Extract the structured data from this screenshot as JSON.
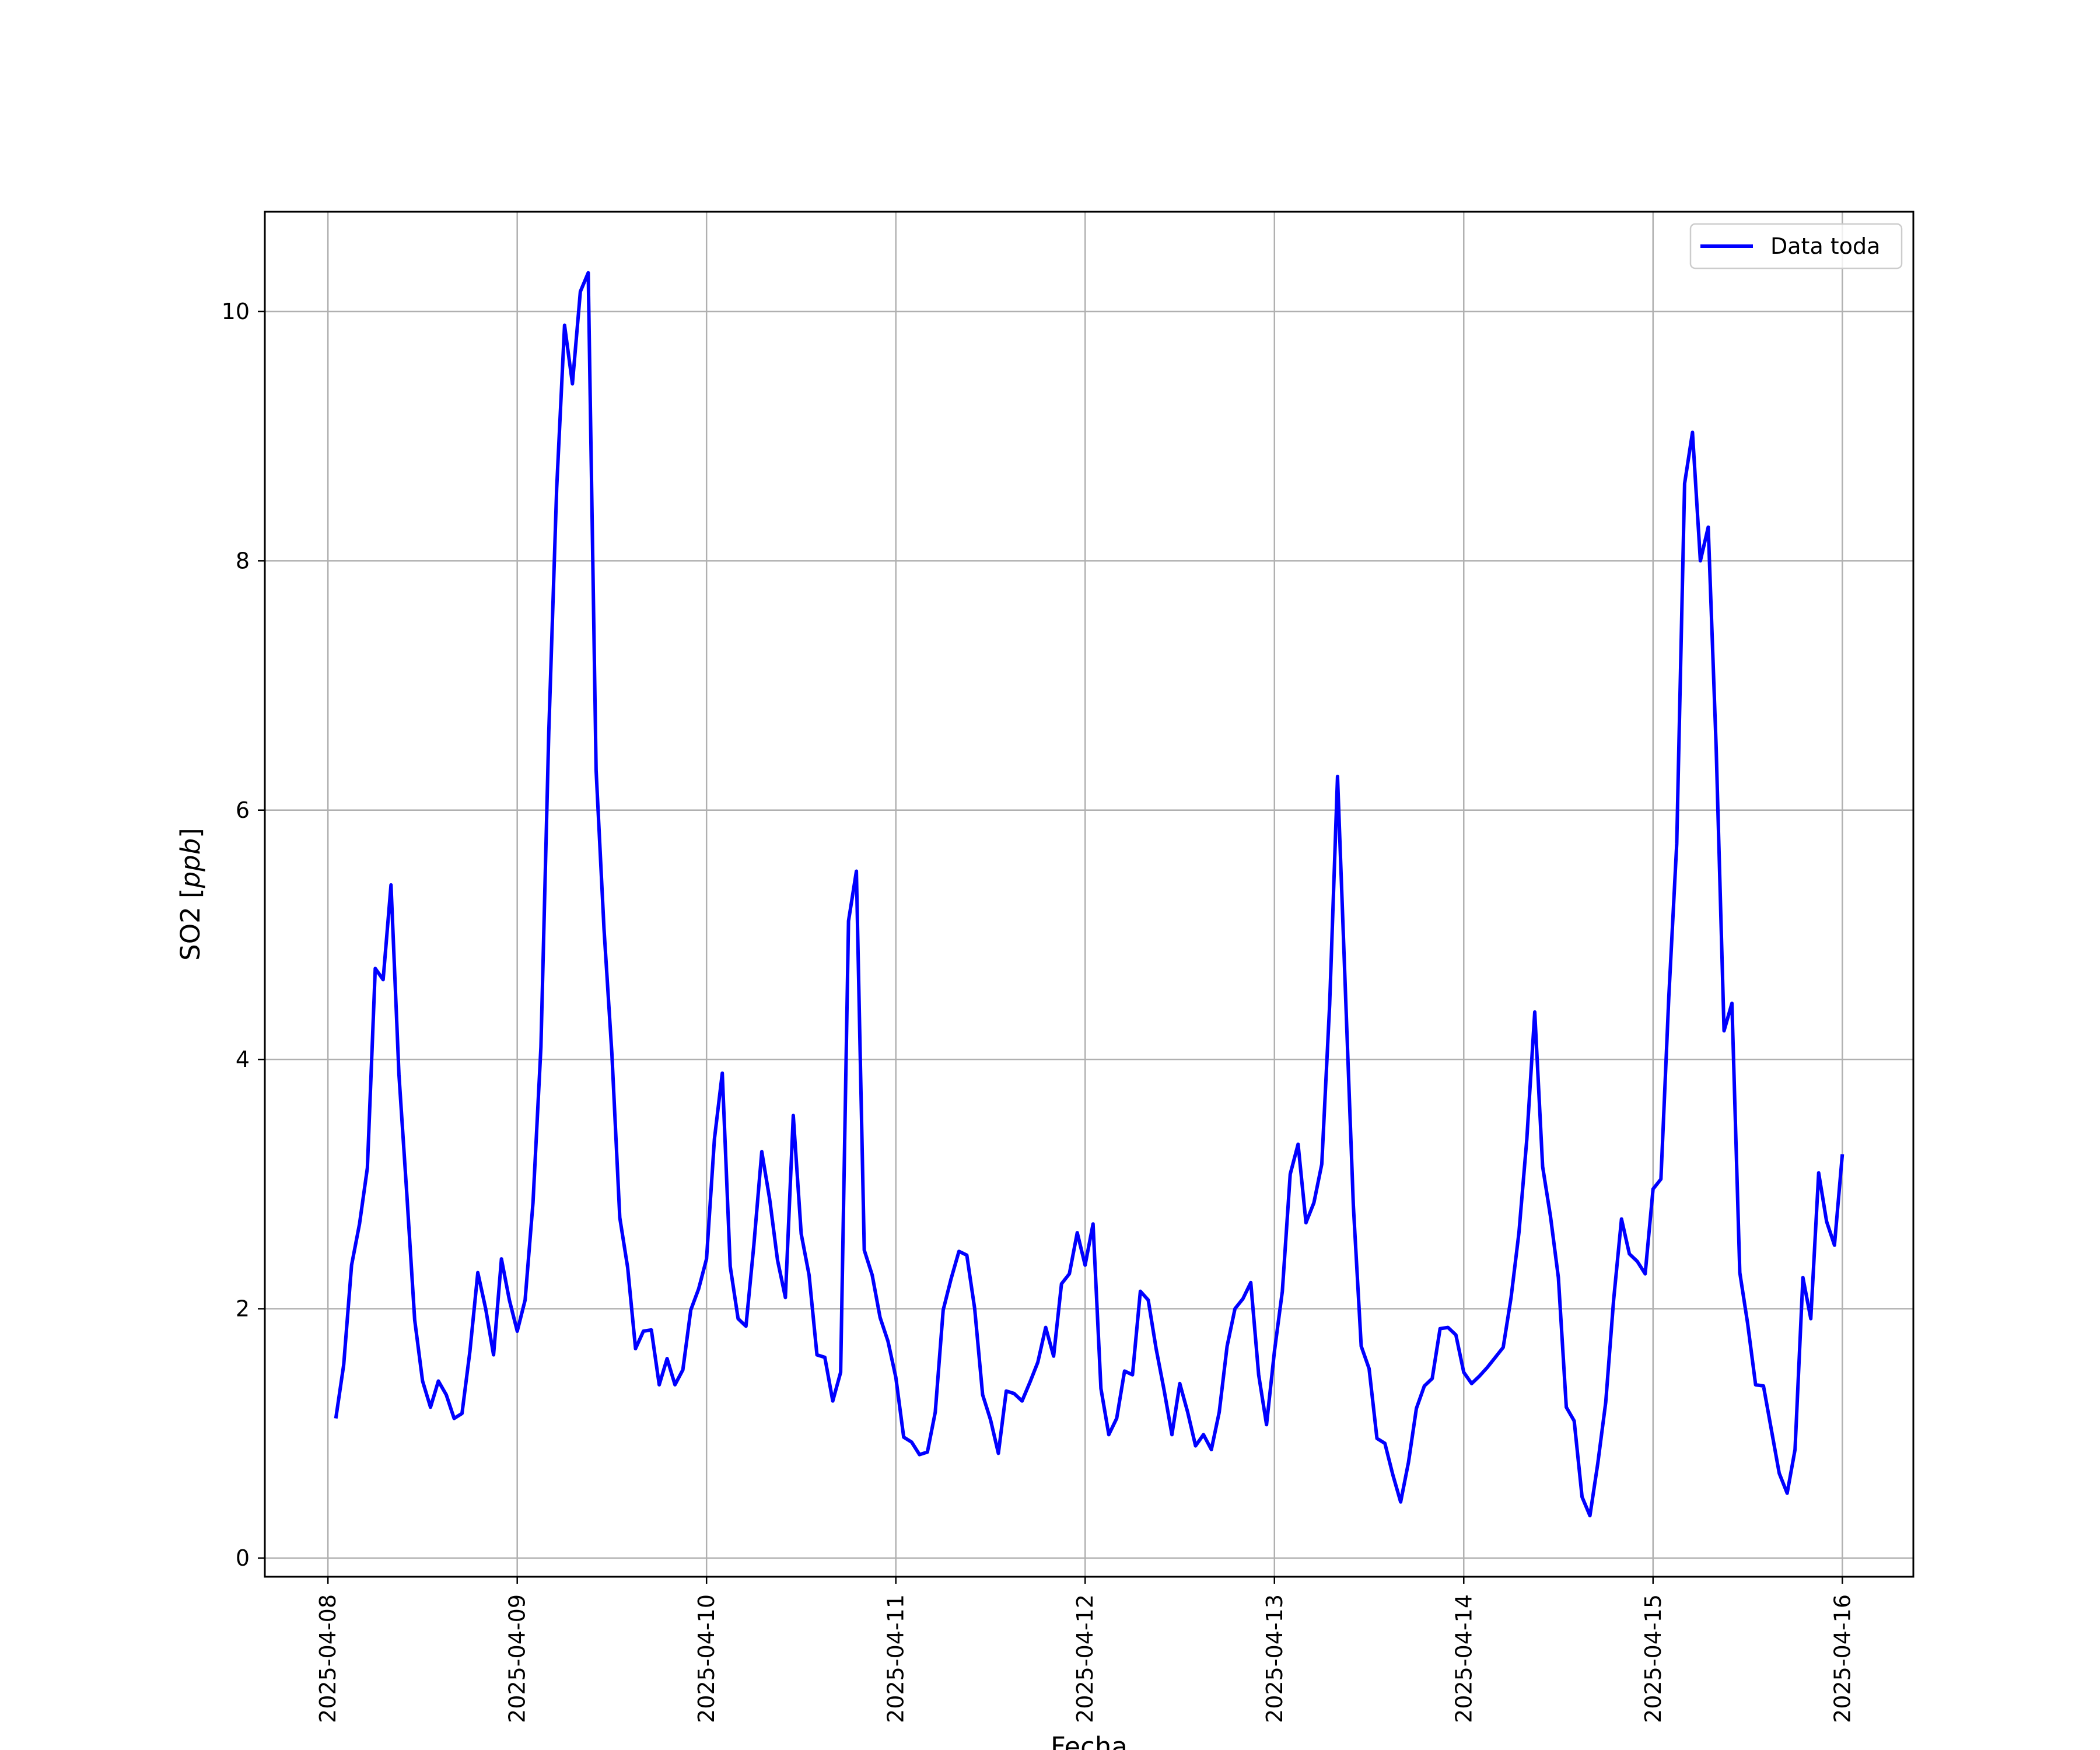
{
  "chart_data": {
    "type": "line",
    "title": "",
    "xlabel": "Fecha",
    "ylabel_main": "SO2",
    "ylabel_unit": "ppb",
    "x_tick_labels": [
      "2025-04-08",
      "2025-04-09",
      "2025-04-10",
      "2025-04-11",
      "2025-04-12",
      "2025-04-13",
      "2025-04-14",
      "2025-04-15",
      "2025-04-16"
    ],
    "y_ticks": [
      0,
      2,
      4,
      6,
      8,
      10
    ],
    "xlim": [
      "2025-04-07T16:00",
      "2025-04-16T09:00"
    ],
    "ylim": [
      -0.15,
      10.8
    ],
    "grid": true,
    "legend": {
      "position": "top-right",
      "entries": [
        "Data toda"
      ]
    },
    "series": [
      {
        "name": "Data toda",
        "color": "#0000ff",
        "x_start": "2025-04-08T01:00",
        "step_hours": 1,
        "values": [
          1.12,
          1.55,
          2.35,
          2.68,
          3.13,
          4.73,
          4.64,
          5.4,
          3.88,
          2.92,
          1.91,
          1.42,
          1.21,
          1.42,
          1.31,
          1.12,
          1.16,
          1.66,
          2.29,
          2.0,
          1.63,
          2.4,
          2.07,
          1.82,
          2.07,
          2.85,
          4.1,
          6.63,
          8.58,
          9.89,
          9.42,
          10.16,
          10.31,
          6.32,
          5.05,
          4.05,
          2.73,
          2.33,
          1.68,
          1.82,
          1.83,
          1.39,
          1.6,
          1.39,
          1.51,
          1.99,
          2.16,
          2.4,
          3.36,
          3.89,
          2.34,
          1.92,
          1.86,
          2.51,
          3.26,
          2.88,
          2.39,
          2.09,
          3.55,
          2.6,
          2.27,
          1.63,
          1.61,
          1.26,
          1.49,
          5.11,
          5.51,
          2.47,
          2.27,
          1.93,
          1.74,
          1.45,
          0.97,
          0.93,
          0.83,
          0.85,
          1.17,
          1.99,
          2.24,
          2.46,
          2.43,
          2.0,
          1.31,
          1.11,
          0.84,
          1.34,
          1.32,
          1.26,
          1.41,
          1.57,
          1.85,
          1.62,
          2.2,
          2.28,
          2.61,
          2.35,
          2.68,
          1.36,
          0.99,
          1.12,
          1.5,
          1.47,
          2.14,
          2.07,
          1.68,
          1.35,
          0.99,
          1.4,
          1.17,
          0.9,
          0.99,
          0.87,
          1.17,
          1.7,
          2.0,
          2.08,
          2.21,
          1.47,
          1.07,
          1.66,
          2.14,
          3.08,
          3.32,
          2.69,
          2.85,
          3.16,
          4.44,
          6.27,
          4.55,
          2.83,
          1.7,
          1.52,
          0.96,
          0.92,
          0.67,
          0.45,
          0.77,
          1.2,
          1.38,
          1.44,
          1.84,
          1.85,
          1.79,
          1.49,
          1.4,
          1.46,
          1.53,
          1.61,
          1.69,
          2.09,
          2.61,
          3.36,
          4.38,
          3.14,
          2.74,
          2.25,
          1.21,
          1.1,
          0.49,
          0.34,
          0.76,
          1.25,
          2.07,
          2.72,
          2.44,
          2.38,
          2.28,
          2.96,
          3.04,
          4.5,
          5.73,
          8.62,
          9.03,
          8.0,
          8.27,
          6.5,
          4.23,
          4.45,
          2.29,
          1.88,
          1.39,
          1.38,
          1.03,
          0.68,
          0.52,
          0.87,
          2.25,
          1.92,
          3.09,
          2.7,
          2.51,
          3.24
        ]
      }
    ]
  }
}
